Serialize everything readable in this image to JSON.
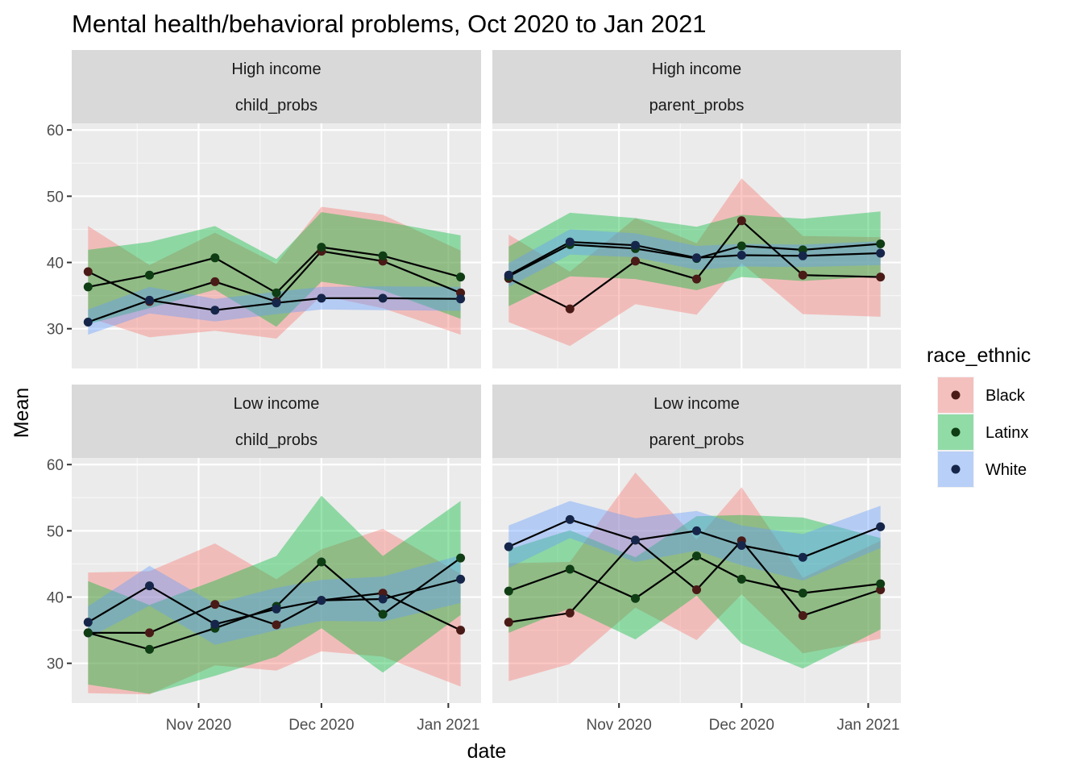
{
  "chart_data": {
    "type": "line",
    "title": "Mental health/behavioral problems, Oct 2020 to Jan 2021",
    "xlabel": "date",
    "ylabel": "Mean",
    "x_ticks": [
      "Nov 2020",
      "Dec 2020",
      "Jan 2021"
    ],
    "x_tick_dates": [
      "2020-11-01",
      "2020-12-01",
      "2021-01-01"
    ],
    "xlim": [
      "2020-10-01",
      "2021-01-09"
    ],
    "y_ticks": [
      30,
      40,
      50,
      60
    ],
    "ylim": [
      24,
      61
    ],
    "grid": true,
    "legend": {
      "title": "race_ethnic",
      "position": "right",
      "entries": [
        {
          "name": "Black",
          "fill": "#F8766D",
          "point": "#4a1a17"
        },
        {
          "name": "Latinx",
          "fill": "#00BA38",
          "point": "#0f3d14"
        },
        {
          "name": "White",
          "fill": "#619CFF",
          "point": "#16264a"
        }
      ]
    },
    "x_dates": [
      "2020-10-05",
      "2020-10-20",
      "2020-11-05",
      "2020-11-20",
      "2020-12-01",
      "2020-12-16",
      "2021-01-04"
    ],
    "panels": [
      {
        "strip_top": "High income",
        "strip_bottom": "child_probs",
        "series": [
          {
            "name": "Black",
            "mean": [
              38.6,
              34.1,
              37.1,
              34.1,
              41.7,
              40.2,
              35.4
            ],
            "lower": [
              31.7,
              28.7,
              29.7,
              28.5,
              35.0,
              33.1,
              29.1
            ],
            "upper": [
              45.5,
              39.6,
              44.5,
              39.8,
              48.4,
              47.2,
              41.8
            ]
          },
          {
            "name": "Latinx",
            "mean": [
              36.3,
              38.1,
              40.7,
              35.4,
              42.3,
              41.0,
              37.8
            ],
            "lower": [
              30.7,
              33.1,
              35.9,
              30.3,
              37.1,
              35.8,
              31.5
            ],
            "upper": [
              41.9,
              43.1,
              45.5,
              40.5,
              47.6,
              46.2,
              44.1
            ]
          },
          {
            "name": "White",
            "mean": [
              31.0,
              34.3,
              32.8,
              33.9,
              34.6,
              34.6,
              34.5
            ],
            "lower": [
              29.1,
              32.3,
              31.1,
              32.2,
              32.9,
              32.8,
              32.7
            ],
            "upper": [
              32.9,
              36.3,
              34.5,
              35.6,
              36.3,
              36.4,
              36.3
            ]
          }
        ]
      },
      {
        "strip_top": "High income",
        "strip_bottom": "parent_probs",
        "series": [
          {
            "name": "Black",
            "mean": [
              37.6,
              33.0,
              40.2,
              37.5,
              46.3,
              38.1,
              37.8
            ],
            "lower": [
              31.0,
              27.4,
              33.7,
              32.1,
              39.9,
              32.2,
              31.8
            ],
            "upper": [
              44.2,
              38.6,
              46.7,
              42.9,
              52.7,
              44.0,
              43.8
            ]
          },
          {
            "name": "Latinx",
            "mean": [
              37.9,
              42.7,
              42.1,
              40.6,
              42.5,
              41.9,
              42.8
            ],
            "lower": [
              33.4,
              37.9,
              37.5,
              35.8,
              37.8,
              37.2,
              37.9
            ],
            "upper": [
              42.4,
              47.5,
              46.7,
              45.4,
              47.2,
              46.6,
              47.7
            ]
          },
          {
            "name": "White",
            "mean": [
              38.1,
              43.1,
              42.6,
              40.7,
              41.1,
              41.0,
              41.4
            ],
            "lower": [
              36.3,
              41.2,
              40.8,
              38.9,
              39.4,
              39.3,
              39.6
            ],
            "upper": [
              39.9,
              45.0,
              44.4,
              42.5,
              42.8,
              42.7,
              43.2
            ]
          }
        ]
      },
      {
        "strip_top": "Low income",
        "strip_bottom": "child_probs",
        "series": [
          {
            "name": "Black",
            "mean": [
              34.6,
              34.6,
              38.9,
              35.8,
              39.5,
              40.6,
              35.0
            ],
            "lower": [
              25.5,
              25.3,
              29.7,
              28.9,
              31.8,
              31.0,
              26.5
            ],
            "upper": [
              43.7,
              43.9,
              48.1,
              42.7,
              47.2,
              50.3,
              43.5
            ]
          },
          {
            "name": "Latinx",
            "mean": [
              34.6,
              32.1,
              35.3,
              38.6,
              45.3,
              37.4,
              45.9
            ],
            "lower": [
              26.8,
              25.4,
              28.1,
              31.0,
              35.3,
              28.6,
              37.3
            ],
            "upper": [
              42.4,
              38.8,
              42.5,
              46.2,
              55.3,
              46.2,
              54.5
            ]
          },
          {
            "name": "White",
            "mean": [
              36.2,
              41.7,
              35.9,
              38.2,
              39.5,
              39.7,
              42.7
            ],
            "lower": [
              33.8,
              38.7,
              32.8,
              35.0,
              36.4,
              36.3,
              39.1
            ],
            "upper": [
              38.6,
              44.7,
              39.0,
              41.4,
              42.6,
              43.1,
              46.3
            ]
          }
        ]
      },
      {
        "strip_top": "Low income",
        "strip_bottom": "parent_probs",
        "series": [
          {
            "name": "Black",
            "mean": [
              36.2,
              37.6,
              48.6,
              41.1,
              48.5,
              37.2,
              41.1
            ],
            "lower": [
              27.3,
              29.9,
              38.4,
              33.5,
              40.4,
              31.5,
              33.7
            ],
            "upper": [
              45.1,
              45.3,
              58.8,
              48.7,
              56.6,
              42.9,
              48.5
            ]
          },
          {
            "name": "Latinx",
            "mean": [
              40.9,
              44.2,
              39.8,
              46.2,
              42.7,
              40.6,
              42.0
            ],
            "lower": [
              34.6,
              38.3,
              33.6,
              40.2,
              33.0,
              29.2,
              35.1
            ],
            "upper": [
              47.2,
              50.1,
              46.0,
              52.2,
              52.4,
              52.0,
              48.9
            ]
          },
          {
            "name": "White",
            "mean": [
              47.6,
              51.7,
              48.6,
              50.0,
              47.8,
              46.0,
              50.6
            ],
            "lower": [
              44.4,
              48.9,
              45.3,
              47.0,
              44.8,
              42.5,
              47.4
            ],
            "upper": [
              50.8,
              54.5,
              51.9,
              53.0,
              50.8,
              49.5,
              53.8
            ]
          }
        ]
      }
    ]
  }
}
